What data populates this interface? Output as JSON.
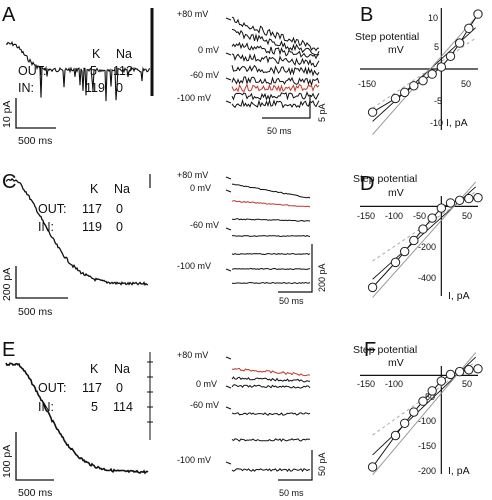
{
  "panel_labels": [
    "A",
    "B",
    "C",
    "D",
    "E",
    "F"
  ],
  "solutions": [
    {
      "header": [
        "K",
        "Na"
      ],
      "rows": [
        {
          "label": "OUT:",
          "values": [
            "5",
            "112"
          ]
        },
        {
          "label": "IN:",
          "values": [
            "119",
            "0"
          ]
        }
      ]
    },
    {
      "header": [
        "K",
        "Na"
      ],
      "rows": [
        {
          "label": "OUT:",
          "values": [
            "117",
            "0"
          ]
        },
        {
          "label": "IN:",
          "values": [
            "119",
            "0"
          ]
        }
      ]
    },
    {
      "header": [
        "K",
        "Na"
      ],
      "rows": [
        {
          "label": "OUT:",
          "values": [
            "117",
            "0"
          ]
        },
        {
          "label": "IN:",
          "values": [
            "5",
            "114"
          ]
        }
      ]
    }
  ],
  "slow_scalebars": [
    {
      "y": "10 pA",
      "x": "500 ms"
    },
    {
      "y": "200 pA",
      "x": "500 ms"
    },
    {
      "y": "100 pA",
      "x": "500 ms"
    }
  ],
  "step_rows": [
    {
      "labels": [
        "+80 mV",
        "0 mV",
        "-60 mV",
        "-100 mV"
      ],
      "scale_y": "5 pA",
      "scale_x": "50 ms"
    },
    {
      "labels": [
        "+80 mV",
        "0 mV",
        "-60 mV",
        "-100 mV"
      ],
      "scale_y": "200 pA",
      "scale_x": "50 ms"
    },
    {
      "labels": [
        "+80 mV",
        "0 mV",
        "-60 mV",
        "-100 mV"
      ],
      "scale_y": "50 pA",
      "scale_x": "50 ms"
    }
  ],
  "chart_data": [
    {
      "type": "scatter",
      "panel": "B",
      "xlabel_lines": [
        "Step potential",
        "mV"
      ],
      "ylabel": "I, pA",
      "x_ticks": [
        "-150",
        "50"
      ],
      "y_ticks": [
        "10",
        "5",
        "-5",
        "-10"
      ],
      "xlim": [
        -160,
        80
      ],
      "ylim": [
        -12,
        12
      ],
      "x": [
        -150,
        -100,
        -80,
        -60,
        -40,
        -20,
        0,
        20,
        40,
        60,
        80
      ],
      "y": [
        -8.5,
        -5.8,
        -4.6,
        -3.3,
        -2.3,
        -1.0,
        0.4,
        2.5,
        5.1,
        8.0,
        10.8
      ]
    },
    {
      "type": "scatter",
      "panel": "D",
      "xlabel_lines": [
        "Step potential",
        "mV"
      ],
      "ylabel": "I, pA",
      "x_ticks": [
        "-150",
        "-100",
        "-50",
        "50"
      ],
      "y_ticks": [
        "-200",
        "-400"
      ],
      "xlim": [
        -160,
        80
      ],
      "ylim": [
        -520,
        60
      ],
      "x": [
        -150,
        -100,
        -80,
        -60,
        -40,
        -20,
        0,
        20,
        40,
        60,
        80
      ],
      "y": [
        -470,
        -325,
        -262,
        -198,
        -132,
        -68,
        -10,
        20,
        35,
        45,
        50
      ]
    },
    {
      "type": "scatter",
      "panel": "F",
      "xlabel_lines": [
        "Step potential",
        "mV"
      ],
      "ylabel": "I, pA",
      "x_ticks": [
        "-150",
        "-100",
        "50"
      ],
      "y_ticks": [
        "-50",
        "-100",
        "-150",
        "-200"
      ],
      "xlim": [
        -160,
        80
      ],
      "ylim": [
        -210,
        20
      ],
      "x": [
        -150,
        -100,
        -80,
        -60,
        -40,
        -20,
        0,
        20,
        40,
        60,
        80
      ],
      "y": [
        -195,
        -128,
        -102,
        -78,
        -55,
        -33,
        -12,
        2,
        8,
        12,
        14
      ]
    }
  ]
}
